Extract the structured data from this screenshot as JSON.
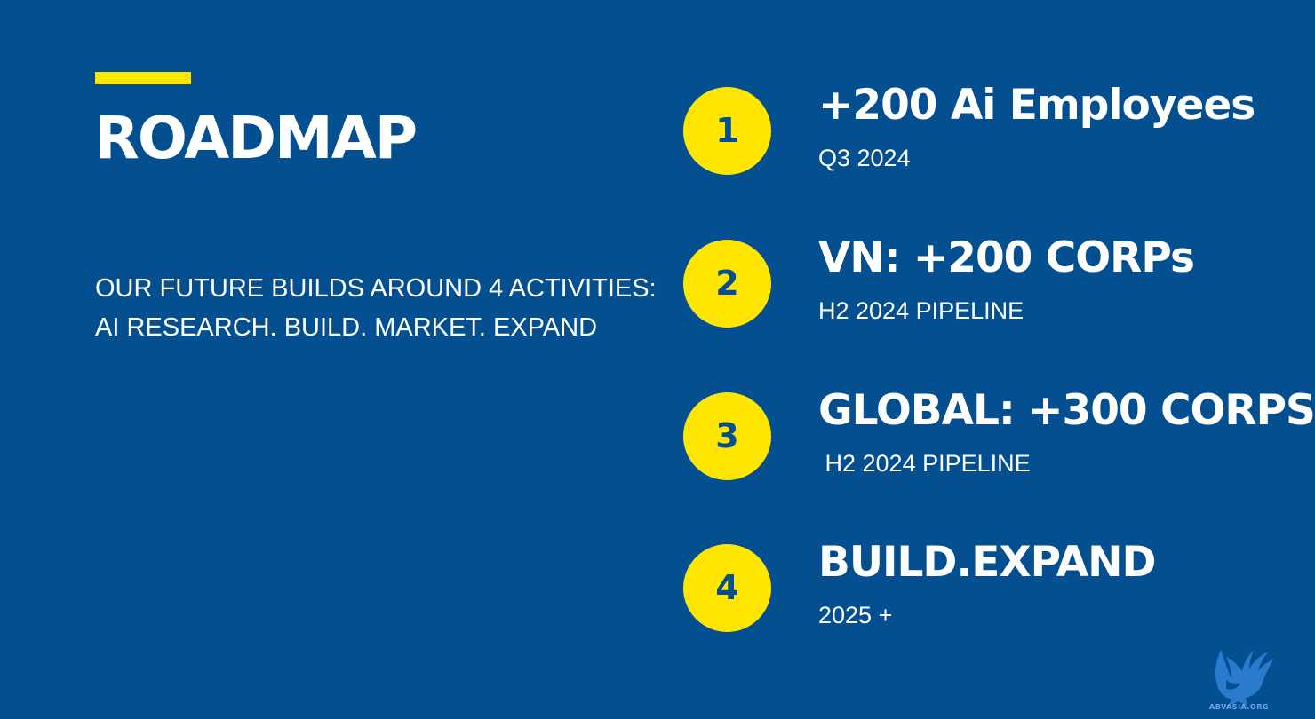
{
  "slide": {
    "title": "ROADMAP",
    "subtitle_lines": [
      "OUR FUTURE BUILDS AROUND 4 ACTIVITIES:",
      "AI RESEARCH. BUILD. MARKET. EXPAND"
    ]
  },
  "steps": [
    {
      "number": "1",
      "title": "+200 Ai Employees",
      "subtitle": "Q3 2024"
    },
    {
      "number": "2",
      "title": "VN: +200 CORPs",
      "subtitle": "H2 2024 PIPELINE"
    },
    {
      "number": "3",
      "title": "GLOBAL: +300 CORPS",
      "subtitle": " H2 2024 PIPELINE"
    },
    {
      "number": "4",
      "title": "BUILD.EXPAND",
      "subtitle": "2025 +"
    }
  ],
  "watermark": {
    "text": "ABVASIA.ORG",
    "icon": "griffin-logo-icon"
  },
  "colors": {
    "background": "#034f90",
    "accent": "#ffe600",
    "text": "#ffffff"
  }
}
